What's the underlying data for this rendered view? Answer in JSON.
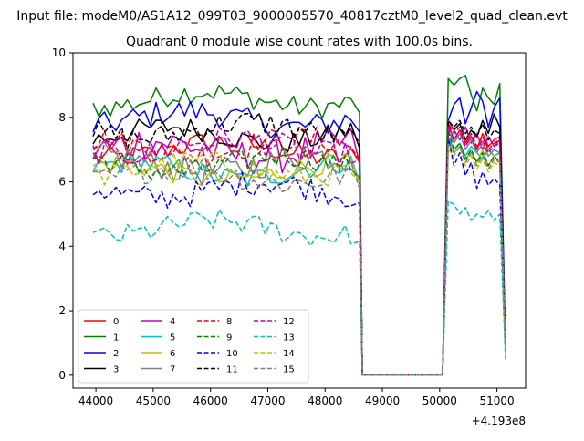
{
  "figure": {
    "suptitle": "Input file: modeM0/AS1A12_099T03_9000005570_40817cztM0_level2_quad_clean.evt",
    "title": "Quadrant 0 module wise count rates with 100.0s bins."
  },
  "chart_data": {
    "type": "line",
    "title": "Quadrant 0 module wise count rates with 100.0s bins.",
    "xlabel": "",
    "ylabel": "",
    "x_offset_label": "+4.193e8",
    "xlim": [
      43600,
      51500
    ],
    "ylim": [
      -0.4,
      10
    ],
    "xticks": [
      44000,
      45000,
      46000,
      47000,
      48000,
      49000,
      50000,
      51000
    ],
    "yticks": [
      0,
      2,
      4,
      6,
      8,
      10
    ],
    "grid": false,
    "legend_position": "lower-left",
    "legend_columns": 4,
    "segments": {
      "active1": {
        "start": 43950,
        "step": 100
      },
      "drop_x": 48650,
      "zero_until_x": 50050,
      "active2": {
        "start": 50150,
        "step": 100
      },
      "end_x": 51150
    },
    "series": [
      {
        "name": "0",
        "color": "#ff0000",
        "dash": "solid",
        "level": 7.0,
        "amp": 0.35,
        "active2": [
          7.8,
          7.3,
          7.6,
          7.2,
          7.4,
          7.0,
          7.5,
          7.1,
          7.3,
          7.4
        ],
        "end": 0.8
      },
      {
        "name": "1",
        "color": "#008000",
        "dash": "solid",
        "level": 8.55,
        "amp": 0.35,
        "active2": [
          9.2,
          9.0,
          9.2,
          9.3,
          8.7,
          8.2,
          8.9,
          8.6,
          8.4,
          9.05
        ],
        "end": 0.8
      },
      {
        "name": "2",
        "color": "#0000ff",
        "dash": "solid",
        "level": 7.95,
        "amp": 0.4,
        "active2": [
          7.9,
          8.4,
          8.6,
          7.8,
          8.3,
          8.8,
          8.5,
          7.7,
          8.3,
          8.6
        ],
        "end": 0.8
      },
      {
        "name": "3",
        "color": "#000000",
        "dash": "solid",
        "level": 7.45,
        "amp": 0.35,
        "active2": [
          7.9,
          7.6,
          7.8,
          7.3,
          7.6,
          7.4,
          7.9,
          7.5,
          8.1,
          7.7
        ],
        "end": 0.8
      },
      {
        "name": "4",
        "color": "#bf00bf",
        "dash": "solid",
        "level": 7.0,
        "amp": 0.55,
        "active2": [
          7.9,
          7.6,
          7.3,
          7.7,
          7.2,
          7.5,
          7.0,
          7.4,
          7.1,
          7.3
        ],
        "end": 0.8
      },
      {
        "name": "5",
        "color": "#00bfbf",
        "dash": "solid",
        "level": 6.35,
        "amp": 0.35,
        "active2": [
          7.4,
          7.0,
          7.2,
          6.8,
          7.1,
          6.9,
          6.7,
          7.0,
          6.8,
          6.9
        ],
        "end": 0.7
      },
      {
        "name": "6",
        "color": "#bfbf00",
        "dash": "solid",
        "level": 6.3,
        "amp": 0.35,
        "active2": [
          7.3,
          6.9,
          7.1,
          6.7,
          6.9,
          6.6,
          7.0,
          6.5,
          6.8,
          6.6
        ],
        "end": 0.7
      },
      {
        "name": "7",
        "color": "#808080",
        "dash": "solid",
        "level": 6.55,
        "amp": 0.45,
        "active2": [
          7.6,
          7.2,
          7.5,
          7.0,
          7.3,
          6.9,
          7.2,
          6.8,
          7.0,
          6.9
        ],
        "end": 0.7
      },
      {
        "name": "8",
        "color": "#ff0000",
        "dash": "dashed",
        "level": 7.1,
        "amp": 0.4,
        "active2": [
          7.8,
          7.5,
          7.7,
          7.2,
          7.5,
          7.1,
          7.4,
          7.0,
          7.2,
          7.3
        ],
        "end": 0.75
      },
      {
        "name": "9",
        "color": "#008000",
        "dash": "dashed",
        "level": 6.55,
        "amp": 0.35,
        "active2": [
          7.6,
          7.0,
          7.2,
          6.7,
          7.0,
          6.6,
          6.9,
          6.5,
          6.8,
          6.6
        ],
        "end": 0.7
      },
      {
        "name": "10",
        "color": "#0000ff",
        "dash": "dashed",
        "level": 5.75,
        "amp": 0.4,
        "active2": [
          7.4,
          6.5,
          6.9,
          6.2,
          6.6,
          5.8,
          6.3,
          5.9,
          6.1,
          5.9
        ],
        "end": 0.7
      },
      {
        "name": "11",
        "color": "#000000",
        "dash": "dashed",
        "level": 7.6,
        "amp": 0.4,
        "active2": [
          7.9,
          7.7,
          7.9,
          7.5,
          7.7,
          7.4,
          7.8,
          7.3,
          7.6,
          7.5
        ],
        "end": 0.75
      },
      {
        "name": "12",
        "color": "#bf00bf",
        "dash": "dashed",
        "level": 7.1,
        "amp": 0.4,
        "active2": [
          7.7,
          7.3,
          7.6,
          7.1,
          7.4,
          7.0,
          7.3,
          6.9,
          7.1,
          7.2
        ],
        "end": 0.75
      },
      {
        "name": "13",
        "color": "#00bfbf",
        "dash": "dashed",
        "level": 4.55,
        "amp": 0.35,
        "active2": [
          5.4,
          5.3,
          5.0,
          5.2,
          4.8,
          5.0,
          4.9,
          5.1,
          4.8,
          5.0
        ],
        "end": 0.5
      },
      {
        "name": "14",
        "color": "#bfbf00",
        "dash": "dashed",
        "level": 6.4,
        "amp": 0.35,
        "active2": [
          7.0,
          6.8,
          7.1,
          6.5,
          6.8,
          6.4,
          6.7,
          6.3,
          6.6,
          6.5
        ],
        "end": 0.7
      },
      {
        "name": "15",
        "color": "#808080",
        "dash": "dashed",
        "level": 6.2,
        "amp": 0.4,
        "active2": [
          7.2,
          6.9,
          7.1,
          6.6,
          6.9,
          6.5,
          6.8,
          6.4,
          6.7,
          6.6
        ],
        "end": 0.7
      }
    ]
  }
}
